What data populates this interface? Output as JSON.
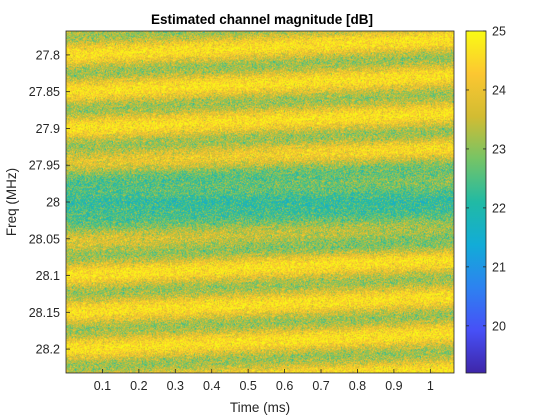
{
  "chart_data": {
    "type": "heatmap",
    "title": "Estimated channel magnitude [dB]",
    "xlabel": "Time (ms)",
    "ylabel": "Freq (MHz)",
    "xlim": [
      0.0,
      1.065
    ],
    "ylim": [
      28.2325,
      27.7675
    ],
    "y_direction": "reversed",
    "x_ticks": [
      "0.1",
      "0.2",
      "0.3",
      "0.4",
      "0.5",
      "0.6",
      "0.7",
      "0.8",
      "0.9",
      "1"
    ],
    "x_tick_values": [
      0.1,
      0.2,
      0.3,
      0.4,
      0.5,
      0.6,
      0.7,
      0.8,
      0.9,
      1.0
    ],
    "y_ticks": [
      "27.8",
      "27.85",
      "27.9",
      "27.95",
      "28",
      "28.05",
      "28.1",
      "28.15",
      "28.2"
    ],
    "y_tick_values": [
      27.8,
      27.85,
      27.9,
      27.95,
      28.0,
      28.05,
      28.1,
      28.15,
      28.2
    ],
    "colorbar": {
      "ticks": [
        "20",
        "21",
        "22",
        "23",
        "24",
        "25"
      ],
      "tick_values": [
        20,
        21,
        22,
        23,
        24,
        25
      ],
      "clim": [
        19.2,
        25.0
      ],
      "colormap": "parula"
    },
    "pattern": {
      "description_values": "magnitude in dB, minimum ~22 dB near 28.0 MHz, maximum ~24.5 dB at band edges, periodic ripple along frequency with slope drifting over time",
      "center_freq_mhz": 28.0,
      "min_db": 21.9,
      "max_db": 24.6,
      "ripple_period_mhz": 0.05,
      "ripple_drift_mhz_per_ms": 0.02,
      "noise_db": 0.45
    }
  }
}
